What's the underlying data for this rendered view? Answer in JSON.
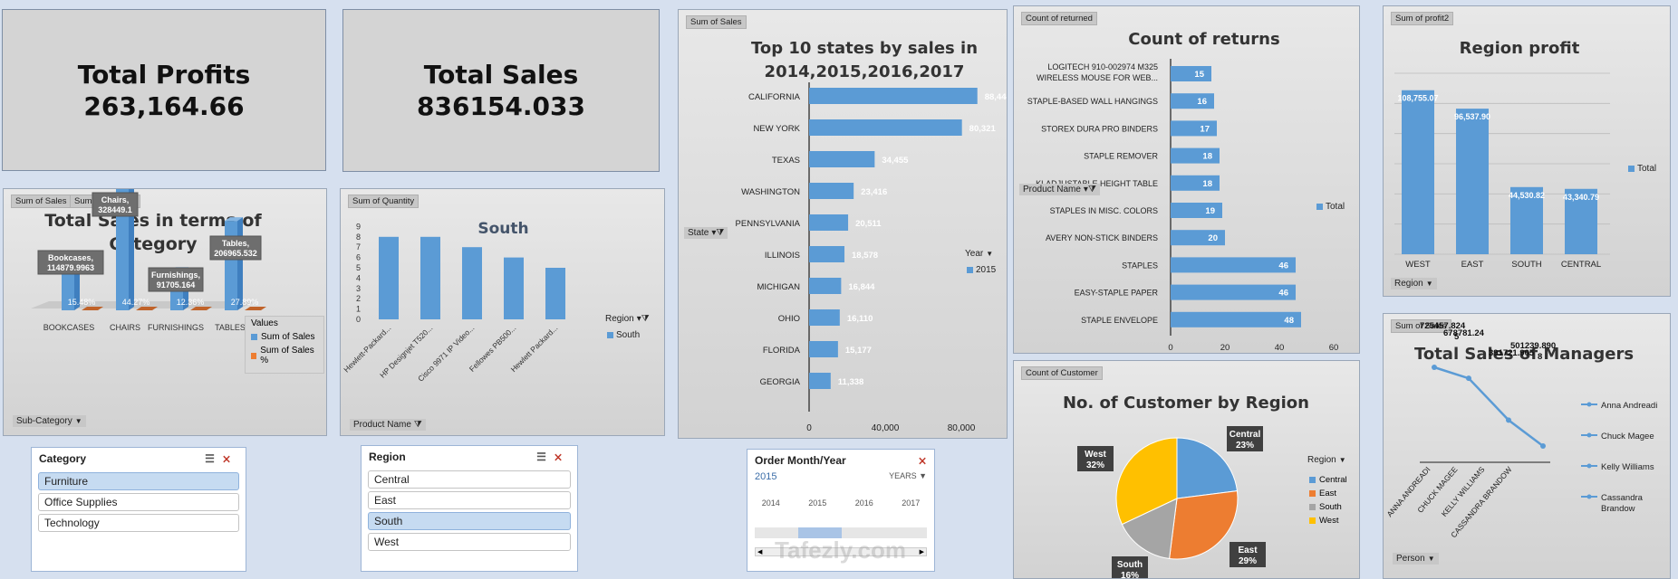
{
  "kpis": {
    "profit": {
      "title": "Total Profits",
      "value": "263,164.66"
    },
    "sales": {
      "title": "Total Sales",
      "value": "836154.033"
    }
  },
  "category_chart": {
    "tags": [
      "Sum of Sales",
      "Sum of Sales %"
    ],
    "title_line1": "Total Sales in terms of",
    "title_line2": "Category",
    "filter": "Sub-Category",
    "legend_title": "Values",
    "legend": [
      "Sum of Sales",
      "Sum of Sales %"
    ],
    "callouts": [
      "Bookcases, 114879.9963",
      "Chairs, 328449.1",
      "Furnishings, 91705.164",
      "Tables, 206965.532"
    ],
    "chart_data": {
      "type": "bar",
      "categories": [
        "BOOKCASES",
        "CHAIRS",
        "FURNISHINGS",
        "TABLES"
      ],
      "series": [
        {
          "name": "Sum of Sales",
          "values": [
            114879.9963,
            328449.1,
            91705.164,
            206965.532
          ]
        },
        {
          "name": "Sum of Sales %",
          "values": [
            "15.48%",
            "44.27%",
            "12.36%",
            "27.89%"
          ]
        }
      ]
    }
  },
  "south_chart": {
    "tag": "Sum of Quantity",
    "title": "South",
    "filter": "Product Name",
    "legend_filter": "Region",
    "legend": "South",
    "chart_data": {
      "type": "bar",
      "categories": [
        "Hewlett-Packard...",
        "HP Designjet T520...",
        "Cisco 9971 IP Video...",
        "Fellowes PB500...",
        "Hewlett Packard..."
      ],
      "values": [
        8,
        8,
        7,
        6,
        5
      ],
      "y_ticks": [
        "0",
        "1",
        "2",
        "3",
        "4",
        "5",
        "6",
        "7",
        "8",
        "9"
      ],
      "ylim": [
        0,
        9
      ]
    }
  },
  "states_chart": {
    "tag": "Sum of Sales",
    "title_line1": "Top 10 states by sales in",
    "title_line2": "2014,2015,2016,2017",
    "filter": "State",
    "legend_filter": "Year",
    "legend": "2015",
    "chart_data": {
      "type": "bar",
      "categories": [
        "CALIFORNIA",
        "NEW YORK",
        "TEXAS",
        "WASHINGTON",
        "PENNSYLVANIA",
        "ILLINOIS",
        "MICHIGAN",
        "OHIO",
        "FLORIDA",
        "GEORGIA"
      ],
      "values": [
        88444,
        80321,
        34455,
        23416,
        20511,
        18578,
        16844,
        16110,
        15177,
        11338
      ],
      "labels": [
        "88,444",
        "80,321",
        "34,455",
        "23,416",
        "20,511",
        "18,578",
        "16,844",
        "16,110",
        "15,177",
        "11,338"
      ],
      "x_ticks": [
        "0",
        "40,000",
        "80,000"
      ],
      "xlim": [
        0,
        100000
      ]
    }
  },
  "returns_chart": {
    "tag": "Count of returned",
    "title": "Count of returns",
    "filter": "Product Name",
    "legend": "Total",
    "chart_data": {
      "type": "bar",
      "categories": [
        "LOGITECH 910-002974 M325 WIRELESS MOUSE FOR WEB...",
        "STAPLE-BASED WALL HANGINGS",
        "STOREX DURA PRO BINDERS",
        "STAPLE REMOVER",
        "KLADJUSTABLE HEIGHT TABLE",
        "STAPLES IN MISC. COLORS",
        "AVERY NON-STICK BINDERS",
        "STAPLES",
        "EASY-STAPLE PAPER",
        "STAPLE ENVELOPE"
      ],
      "values": [
        15,
        16,
        17,
        18,
        18,
        19,
        20,
        46,
        46,
        48
      ],
      "x_ticks": [
        "0",
        "20",
        "40",
        "60"
      ],
      "xlim": [
        0,
        65
      ]
    }
  },
  "region_profit_chart": {
    "tag": "Sum of profit2",
    "title": "Region profit",
    "filter": "Region",
    "legend": "Total",
    "chart_data": {
      "type": "bar",
      "categories": [
        "WEST",
        "EAST",
        "SOUTH",
        "CENTRAL"
      ],
      "values": [
        108755.07,
        96537.9,
        44530.82,
        43340.79
      ],
      "labels": [
        "108,755.07",
        "96,537.90",
        "44,530.82",
        "43,340.79"
      ],
      "ylim": [
        0,
        120000
      ]
    }
  },
  "customer_chart": {
    "tag": "Count of Customer",
    "title": "No. of Customer by Region",
    "legend_filter": "Region",
    "legend": [
      "Central",
      "East",
      "South",
      "West"
    ],
    "colors": [
      "#5b9bd5",
      "#ed7d31",
      "#a5a5a5",
      "#ffc000"
    ],
    "chart_data": {
      "type": "pie",
      "categories": [
        "Central",
        "East",
        "South",
        "West"
      ],
      "values": [
        23,
        29,
        16,
        32
      ],
      "labels": [
        "23%",
        "29%",
        "16%",
        "32%"
      ]
    }
  },
  "managers_chart": {
    "tag": "Sum of Sales",
    "title": "Total Sales of Managers",
    "filter": "Person",
    "legend": [
      "Anna Andreadi",
      "Chuck Magee",
      "Kelly Williams",
      "Cassandra Brandow"
    ],
    "chart_data": {
      "type": "line",
      "categories": [
        "ANNA ANDREADI",
        "CHUCK MAGEE",
        "KELLY WILLIAMS",
        "CASSANDRA BRANDOW"
      ],
      "values": [
        725457.8245,
        678781.24,
        501239.8908,
        391721.905
      ],
      "labels": [
        "725457.824 5",
        "678781.24",
        "501239.890 8",
        "391721.905"
      ]
    }
  },
  "slicers": {
    "category": {
      "title": "Category",
      "items": [
        "Furniture",
        "Office Supplies",
        "Technology"
      ],
      "selected": 0
    },
    "region": {
      "title": "Region",
      "items": [
        "Central",
        "East",
        "South",
        "West"
      ],
      "selected": 2
    },
    "timeline": {
      "title": "Order Month/Year",
      "year": "2015",
      "level": "YEARS",
      "ticks": [
        "2014",
        "2015",
        "2016",
        "2017"
      ]
    }
  },
  "watermark": "Tafezly.com"
}
